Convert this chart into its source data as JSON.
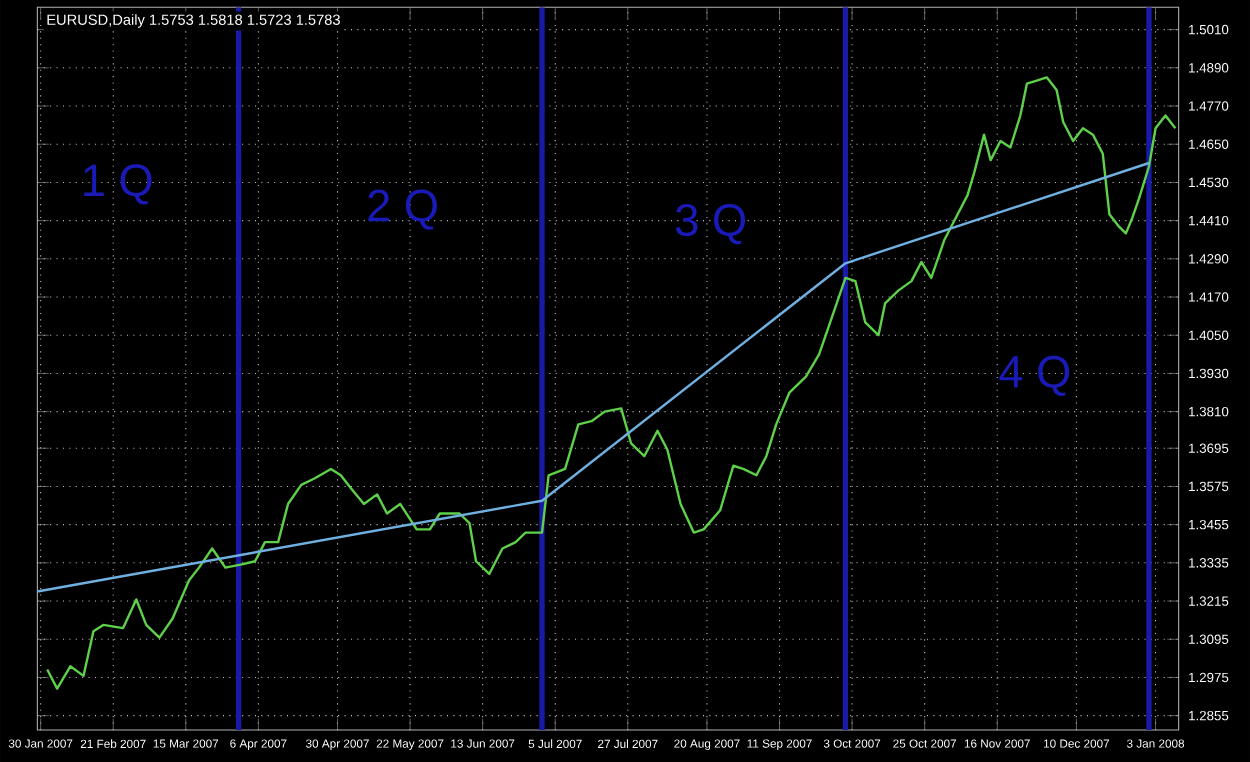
{
  "chart_data": {
    "type": "line",
    "title": "EURUSD,Daily  1.5753 1.5818 1.5723 1.5783",
    "xlim": [
      "2007-01-29",
      "2008-01-10"
    ],
    "xticks": [
      {
        "value": "2007-01-30",
        "label": "30 Jan 2007"
      },
      {
        "value": "2007-02-21",
        "label": "21 Feb 2007"
      },
      {
        "value": "2007-03-15",
        "label": "15 Mar 2007"
      },
      {
        "value": "2007-04-06",
        "label": "6 Apr 2007"
      },
      {
        "value": "2007-04-30",
        "label": "30 Apr 2007"
      },
      {
        "value": "2007-05-22",
        "label": "22 May 2007"
      },
      {
        "value": "2007-06-13",
        "label": "13 Jun 2007"
      },
      {
        "value": "2007-07-05",
        "label": "5 Jul 2007"
      },
      {
        "value": "2007-07-27",
        "label": "27 Jul 2007"
      },
      {
        "value": "2007-08-20",
        "label": "20 Aug 2007"
      },
      {
        "value": "2007-09-11",
        "label": "11 Sep 2007"
      },
      {
        "value": "2007-10-03",
        "label": "3 Oct 2007"
      },
      {
        "value": "2007-10-25",
        "label": "25 Oct 2007"
      },
      {
        "value": "2007-11-16",
        "label": "16 Nov 2007"
      },
      {
        "value": "2007-12-10",
        "label": "10 Dec 2007"
      },
      {
        "value": "2008-01-03",
        "label": "3 Jan 2008"
      }
    ],
    "ylim": [
      1.281,
      1.508
    ],
    "yticks": [
      {
        "value": 1.2855,
        "label": "1.2855"
      },
      {
        "value": 1.2975,
        "label": "1.2975"
      },
      {
        "value": 1.3095,
        "label": "1.3095"
      },
      {
        "value": 1.3215,
        "label": "1.3215"
      },
      {
        "value": 1.3335,
        "label": "1.3335"
      },
      {
        "value": 1.3455,
        "label": "1.3455"
      },
      {
        "value": 1.3575,
        "label": "1.3575"
      },
      {
        "value": 1.3695,
        "label": "1.3695"
      },
      {
        "value": 1.381,
        "label": "1.3810"
      },
      {
        "value": 1.393,
        "label": "1.3930"
      },
      {
        "value": 1.405,
        "label": "1.4050"
      },
      {
        "value": 1.417,
        "label": "1.4170"
      },
      {
        "value": 1.429,
        "label": "1.4290"
      },
      {
        "value": 1.441,
        "label": "1.4410"
      },
      {
        "value": 1.453,
        "label": "1.4530"
      },
      {
        "value": 1.465,
        "label": "1.4650"
      },
      {
        "value": 1.477,
        "label": "1.4770"
      },
      {
        "value": 1.489,
        "label": "1.4890"
      },
      {
        "value": 1.501,
        "label": "1.5010"
      }
    ],
    "grid": true,
    "series": [
      {
        "color": "#5ed04a",
        "x": [
          "2007-02-01",
          "2007-02-04",
          "2007-02-08",
          "2007-02-12",
          "2007-02-15",
          "2007-02-18",
          "2007-02-24",
          "2007-02-28",
          "2007-03-03",
          "2007-03-07",
          "2007-03-11",
          "2007-03-16",
          "2007-03-19",
          "2007-03-23",
          "2007-03-27",
          "2007-04-01",
          "2007-04-05",
          "2007-04-08",
          "2007-04-12",
          "2007-04-15",
          "2007-04-19",
          "2007-04-23",
          "2007-04-28",
          "2007-05-01",
          "2007-05-04",
          "2007-05-08",
          "2007-05-12",
          "2007-05-15",
          "2007-05-19",
          "2007-05-24",
          "2007-05-28",
          "2007-05-31",
          "2007-06-06",
          "2007-06-09",
          "2007-06-11",
          "2007-06-15",
          "2007-06-19",
          "2007-06-23",
          "2007-06-26",
          "2007-07-01",
          "2007-07-03",
          "2007-07-08",
          "2007-07-12",
          "2007-07-16",
          "2007-07-20",
          "2007-07-25",
          "2007-07-28",
          "2007-08-01",
          "2007-08-05",
          "2007-08-08",
          "2007-08-12",
          "2007-08-16",
          "2007-08-19",
          "2007-08-24",
          "2007-08-28",
          "2007-08-31",
          "2007-09-04",
          "2007-09-07",
          "2007-09-10",
          "2007-09-14",
          "2007-09-19",
          "2007-09-23",
          "2007-09-27",
          "2007-10-01",
          "2007-10-04",
          "2007-10-07",
          "2007-10-11",
          "2007-10-13",
          "2007-10-17",
          "2007-10-21",
          "2007-10-24",
          "2007-10-27",
          "2007-10-31",
          "2007-11-04",
          "2007-11-07",
          "2007-11-09",
          "2007-11-12",
          "2007-11-14",
          "2007-11-17",
          "2007-11-20",
          "2007-11-23",
          "2007-11-25",
          "2007-11-28",
          "2007-12-01",
          "2007-12-04",
          "2007-12-06",
          "2007-12-09",
          "2007-12-12",
          "2007-12-15",
          "2007-12-18",
          "2007-12-20",
          "2007-12-23",
          "2007-12-25",
          "2007-12-27",
          "2007-12-29",
          "2008-01-01",
          "2008-01-03",
          "2008-01-06",
          "2008-01-09"
        ],
        "values": [
          1.3,
          1.294,
          1.301,
          1.298,
          1.312,
          1.314,
          1.313,
          1.322,
          1.314,
          1.31,
          1.316,
          1.328,
          1.332,
          1.338,
          1.332,
          1.333,
          1.334,
          1.34,
          1.34,
          1.352,
          1.358,
          1.36,
          1.363,
          1.361,
          1.357,
          1.352,
          1.355,
          1.349,
          1.352,
          1.344,
          1.344,
          1.349,
          1.349,
          1.346,
          1.334,
          1.33,
          1.338,
          1.34,
          1.343,
          1.343,
          1.361,
          1.363,
          1.377,
          1.378,
          1.381,
          1.382,
          1.371,
          1.367,
          1.375,
          1.369,
          1.352,
          1.343,
          1.344,
          1.35,
          1.364,
          1.363,
          1.361,
          1.367,
          1.377,
          1.387,
          1.392,
          1.399,
          1.411,
          1.423,
          1.422,
          1.409,
          1.405,
          1.415,
          1.419,
          1.422,
          1.428,
          1.423,
          1.435,
          1.443,
          1.449,
          1.456,
          1.468,
          1.46,
          1.466,
          1.464,
          1.474,
          1.484,
          1.485,
          1.486,
          1.482,
          1.472,
          1.466,
          1.47,
          1.468,
          1.462,
          1.443,
          1.439,
          1.437,
          1.442,
          1.448,
          1.458,
          1.47,
          1.474,
          1.47
        ]
      },
      {
        "color": "#6fb0e0",
        "x": [
          "2007-01-29",
          "2007-07-01",
          "2007-10-01",
          "2008-01-01"
        ],
        "values": [
          1.3245,
          1.353,
          1.4276,
          1.4591
        ]
      }
    ],
    "ref_lines": [
      {
        "axis": "x",
        "value": "2007-03-31",
        "color": "#1a1aa8"
      },
      {
        "axis": "x",
        "value": "2007-07-01",
        "color": "#1a1aa8"
      },
      {
        "axis": "x",
        "value": "2007-10-01",
        "color": "#1a1aa8"
      },
      {
        "axis": "x",
        "value": "2008-01-01",
        "color": "#1a1aa8"
      }
    ],
    "annotations": [
      "1 Q",
      "2 Q",
      "3 Q",
      "4 Q"
    ]
  }
}
